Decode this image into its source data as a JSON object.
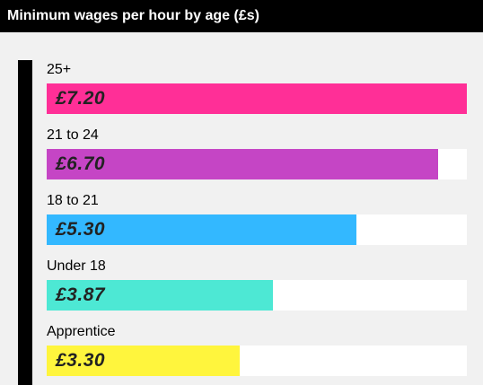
{
  "chart_data": {
    "type": "bar",
    "orientation": "horizontal",
    "title": "Minimum wages per hour by age (£s)",
    "categories": [
      "25+",
      "21 to 24",
      "18 to 21",
      "Under 18",
      "Apprentice"
    ],
    "values": [
      7.2,
      6.7,
      5.3,
      3.87,
      3.3
    ],
    "value_labels": [
      "£7.20",
      "£6.70",
      "£5.30",
      "£3.87",
      "£3.30"
    ],
    "xlim": [
      0,
      7.2
    ],
    "colors": [
      "#ff2f97",
      "#c545c5",
      "#33b8ff",
      "#4de8d4",
      "#fff53d"
    ],
    "grid": false,
    "legend": "none"
  }
}
